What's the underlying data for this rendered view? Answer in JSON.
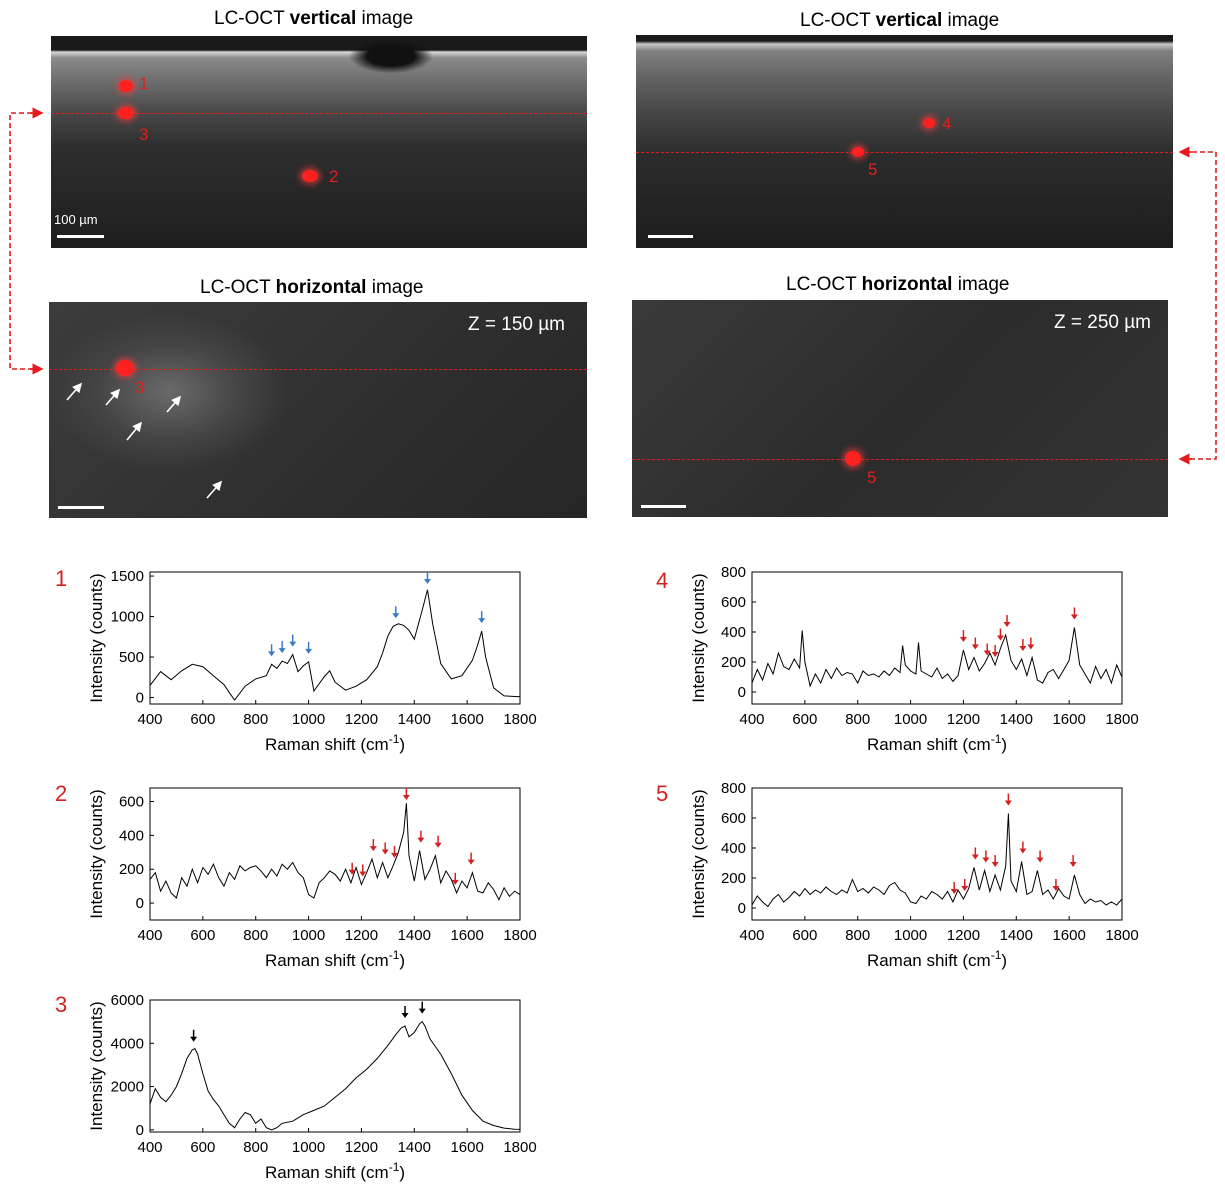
{
  "oct": {
    "vertical_title_prefix": "LC-OCT ",
    "vertical_title_bold": "vertical",
    "title_suffix": " image",
    "horizontal_title_prefix": "LC-OCT ",
    "horizontal_title_bold": "horizontal",
    "scale_label": "100 µm",
    "left_depth": "Z = 150 µm",
    "right_depth": "Z = 250 µm",
    "marker_labels": [
      "1",
      "2",
      "3",
      "4",
      "5"
    ],
    "colors": {
      "marker": "#ff2020",
      "dashed_line": "#e41a1c",
      "scale_bar": "#ffffff"
    }
  },
  "panel_labels": [
    "1",
    "2",
    "3",
    "4",
    "5"
  ],
  "chart_data": [
    {
      "type": "line",
      "id": "1",
      "xlabel": "Raman shift (cm-1)",
      "ylabel": "Intensity (counts)",
      "xlim": [
        400,
        1800
      ],
      "ylim": [
        -80,
        1550
      ],
      "xticks": [
        "400",
        "600",
        "800",
        "1000",
        "1200",
        "1400",
        "1600",
        "1800"
      ],
      "yticks": [
        "0",
        "500",
        "1000",
        "1500"
      ],
      "x": [
        400,
        440,
        480,
        520,
        560,
        600,
        640,
        680,
        700,
        720,
        760,
        800,
        840,
        860,
        880,
        900,
        920,
        940,
        960,
        980,
        1000,
        1020,
        1060,
        1080,
        1100,
        1140,
        1180,
        1220,
        1260,
        1280,
        1300,
        1320,
        1340,
        1360,
        1380,
        1400,
        1430,
        1450,
        1470,
        1500,
        1540,
        1580,
        1620,
        1640,
        1655,
        1670,
        1700,
        1740,
        1800
      ],
      "y": [
        150,
        320,
        220,
        330,
        410,
        380,
        270,
        160,
        60,
        -30,
        140,
        230,
        270,
        410,
        360,
        450,
        420,
        530,
        320,
        390,
        440,
        80,
        260,
        330,
        190,
        90,
        140,
        220,
        380,
        550,
        760,
        880,
        910,
        890,
        830,
        720,
        1080,
        1330,
        900,
        420,
        230,
        270,
        460,
        650,
        820,
        500,
        120,
        20,
        10
      ],
      "arrow_color": "#3a7ac8",
      "arrow_x": [
        860,
        900,
        940,
        1000,
        1330,
        1450,
        1655
      ]
    },
    {
      "type": "line",
      "id": "2",
      "xlabel": "Raman shift (cm-1)",
      "ylabel": "Intensity (counts)",
      "xlim": [
        400,
        1800
      ],
      "ylim": [
        -100,
        680
      ],
      "xticks": [
        "400",
        "600",
        "800",
        "1000",
        "1200",
        "1400",
        "1600",
        "1800"
      ],
      "yticks": [
        "0",
        "200",
        "400",
        "600"
      ],
      "x": [
        400,
        420,
        440,
        460,
        480,
        500,
        520,
        540,
        560,
        580,
        600,
        620,
        640,
        660,
        680,
        700,
        720,
        740,
        760,
        780,
        800,
        820,
        840,
        860,
        880,
        900,
        920,
        940,
        960,
        980,
        1000,
        1020,
        1040,
        1060,
        1080,
        1100,
        1120,
        1140,
        1160,
        1180,
        1200,
        1220,
        1240,
        1260,
        1280,
        1300,
        1320,
        1340,
        1360,
        1370,
        1380,
        1400,
        1420,
        1440,
        1460,
        1480,
        1500,
        1520,
        1540,
        1560,
        1580,
        1600,
        1620,
        1640,
        1660,
        1680,
        1700,
        1720,
        1740,
        1760,
        1780,
        1800
      ],
      "y": [
        140,
        180,
        70,
        130,
        60,
        30,
        150,
        100,
        200,
        120,
        210,
        170,
        230,
        150,
        100,
        180,
        140,
        220,
        190,
        210,
        220,
        190,
        150,
        200,
        160,
        230,
        200,
        240,
        180,
        150,
        50,
        30,
        120,
        150,
        190,
        170,
        130,
        200,
        120,
        210,
        110,
        180,
        260,
        150,
        240,
        150,
        220,
        300,
        420,
        590,
        280,
        130,
        310,
        140,
        200,
        280,
        120,
        190,
        140,
        60,
        130,
        90,
        180,
        70,
        60,
        120,
        80,
        20,
        90,
        40,
        70,
        50
      ],
      "arrow_color": "#d42020",
      "arrow_x": [
        1165,
        1205,
        1245,
        1290,
        1325,
        1370,
        1425,
        1490,
        1555,
        1615
      ]
    },
    {
      "type": "line",
      "id": "3",
      "xlabel": "Raman shift (cm-1)",
      "ylabel": "Intensity (counts)",
      "xlim": [
        400,
        1800
      ],
      "ylim": [
        -100,
        6000
      ],
      "xticks": [
        "400",
        "600",
        "800",
        "1000",
        "1200",
        "1400",
        "1600",
        "1800"
      ],
      "yticks": [
        "0",
        "2000",
        "4000",
        "6000"
      ],
      "x": [
        400,
        420,
        440,
        460,
        480,
        500,
        520,
        540,
        560,
        570,
        580,
        600,
        620,
        640,
        660,
        680,
        700,
        720,
        740,
        760,
        780,
        800,
        820,
        840,
        860,
        880,
        900,
        940,
        980,
        1020,
        1060,
        1100,
        1140,
        1180,
        1220,
        1260,
        1300,
        1330,
        1350,
        1365,
        1380,
        1400,
        1420,
        1430,
        1440,
        1460,
        1500,
        1540,
        1580,
        1620,
        1660,
        1700,
        1740,
        1780,
        1800
      ],
      "y": [
        1200,
        1900,
        1500,
        1300,
        1600,
        2000,
        2600,
        3300,
        3700,
        3750,
        3500,
        2600,
        1800,
        1400,
        1100,
        700,
        300,
        100,
        500,
        800,
        700,
        300,
        500,
        100,
        0,
        100,
        300,
        400,
        700,
        900,
        1100,
        1500,
        1900,
        2400,
        2800,
        3300,
        3900,
        4400,
        4700,
        4800,
        4300,
        4500,
        4900,
        5000,
        4800,
        4200,
        3500,
        2600,
        1600,
        900,
        400,
        200,
        80,
        30,
        20
      ],
      "arrow_color": "#000000",
      "arrow_x": [
        565,
        1365,
        1430
      ]
    },
    {
      "type": "line",
      "id": "4",
      "xlabel": "Raman shift (cm-1)",
      "ylabel": "Intensity (counts)",
      "xlim": [
        400,
        1800
      ],
      "ylim": [
        -80,
        800
      ],
      "xticks": [
        "400",
        "600",
        "800",
        "1000",
        "1200",
        "1400",
        "1600",
        "1800"
      ],
      "yticks": [
        "0",
        "200",
        "400",
        "600",
        "800"
      ],
      "x": [
        400,
        420,
        440,
        460,
        480,
        500,
        520,
        540,
        560,
        580,
        590,
        600,
        620,
        640,
        660,
        680,
        700,
        720,
        740,
        760,
        780,
        800,
        820,
        840,
        860,
        880,
        900,
        920,
        940,
        960,
        970,
        980,
        1000,
        1020,
        1030,
        1040,
        1060,
        1080,
        1100,
        1120,
        1140,
        1160,
        1180,
        1200,
        1220,
        1240,
        1260,
        1280,
        1300,
        1320,
        1340,
        1360,
        1380,
        1400,
        1420,
        1440,
        1460,
        1480,
        1500,
        1520,
        1540,
        1560,
        1580,
        1600,
        1620,
        1640,
        1660,
        1680,
        1700,
        1720,
        1740,
        1760,
        1780,
        1800
      ],
      "y": [
        60,
        150,
        80,
        190,
        120,
        260,
        170,
        150,
        220,
        160,
        410,
        200,
        40,
        120,
        60,
        150,
        90,
        160,
        110,
        130,
        120,
        60,
        140,
        110,
        120,
        100,
        140,
        110,
        160,
        130,
        310,
        180,
        140,
        120,
        330,
        140,
        120,
        100,
        160,
        90,
        120,
        70,
        110,
        280,
        150,
        230,
        140,
        190,
        260,
        180,
        290,
        380,
        210,
        150,
        220,
        110,
        230,
        80,
        60,
        130,
        150,
        90,
        150,
        210,
        430,
        180,
        120,
        60,
        170,
        90,
        150,
        60,
        180,
        100
      ],
      "arrow_color": "#d42020",
      "arrow_x": [
        1200,
        1245,
        1290,
        1320,
        1340,
        1365,
        1425,
        1455,
        1620
      ]
    },
    {
      "type": "line",
      "id": "5",
      "xlabel": "Raman shift (cm-1)",
      "ylabel": "Intensity (counts)",
      "xlim": [
        400,
        1800
      ],
      "ylim": [
        -80,
        800
      ],
      "xticks": [
        "400",
        "600",
        "800",
        "1000",
        "1200",
        "1400",
        "1600",
        "1800"
      ],
      "yticks": [
        "0",
        "200",
        "400",
        "600",
        "800"
      ],
      "x": [
        400,
        420,
        440,
        460,
        480,
        500,
        520,
        540,
        560,
        580,
        600,
        620,
        640,
        660,
        680,
        700,
        720,
        740,
        760,
        780,
        800,
        820,
        840,
        860,
        880,
        900,
        920,
        940,
        960,
        980,
        1000,
        1020,
        1040,
        1060,
        1080,
        1100,
        1120,
        1140,
        1160,
        1180,
        1200,
        1220,
        1240,
        1260,
        1280,
        1300,
        1320,
        1340,
        1360,
        1370,
        1380,
        1400,
        1420,
        1440,
        1460,
        1480,
        1500,
        1520,
        1540,
        1560,
        1580,
        1600,
        1620,
        1640,
        1660,
        1680,
        1700,
        1720,
        1740,
        1760,
        1780,
        1800
      ],
      "y": [
        20,
        80,
        40,
        10,
        60,
        90,
        40,
        70,
        110,
        80,
        130,
        90,
        120,
        100,
        140,
        110,
        90,
        120,
        100,
        190,
        110,
        130,
        100,
        140,
        120,
        90,
        150,
        170,
        120,
        100,
        40,
        30,
        80,
        60,
        110,
        90,
        60,
        110,
        40,
        120,
        60,
        130,
        270,
        120,
        250,
        110,
        220,
        120,
        280,
        630,
        180,
        110,
        310,
        90,
        110,
        250,
        90,
        120,
        60,
        130,
        80,
        60,
        220,
        90,
        30,
        60,
        40,
        50,
        20,
        40,
        20,
        60
      ],
      "arrow_color": "#d42020",
      "arrow_x": [
        1165,
        1205,
        1245,
        1285,
        1320,
        1370,
        1425,
        1490,
        1550,
        1615
      ]
    }
  ]
}
